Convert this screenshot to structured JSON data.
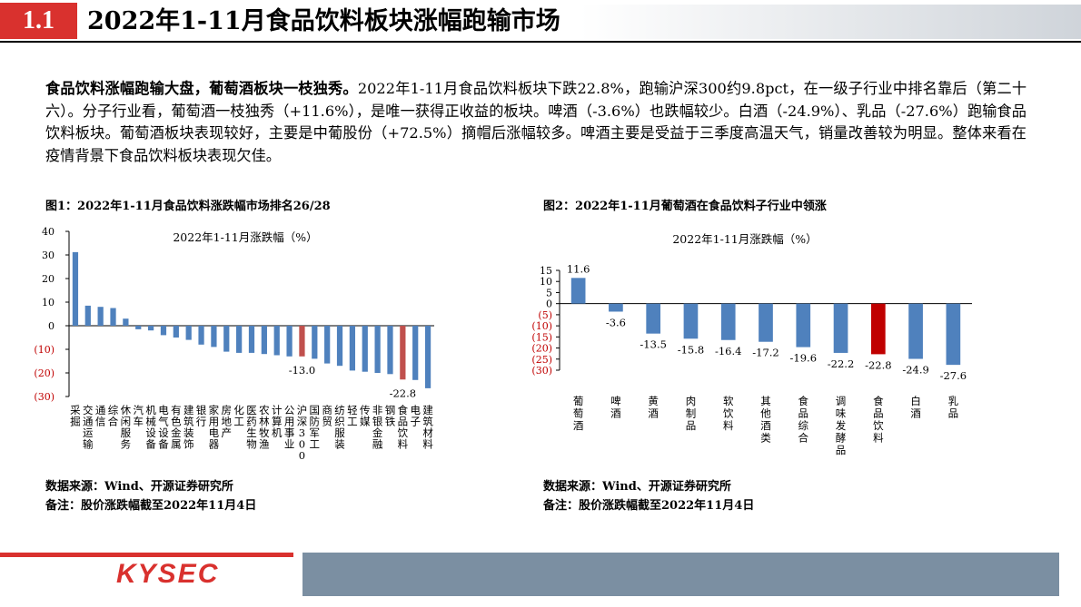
{
  "header": {
    "section_number": "1.1",
    "title": "2022年1-11月食品饮料板块涨幅跑输市场"
  },
  "summary": {
    "lead": "食品饮料涨幅跑输大盘，葡萄酒板块一枝独秀。",
    "body": "2022年1-11月食品饮料板块下跌22.8%，跑输沪深300约9.8pct，在一级子行业中排名靠后（第二十六）。分子行业看，葡萄酒一枝独秀（+11.6%），是唯一获得正收益的板块。啤酒（-3.6%）也跌幅较少。白酒（-24.9%）、乳品（-27.6%）跑输食品饮料板块。葡萄酒板块表现较好，主要是中葡股份（+72.5%）摘帽后涨幅较多。啤酒主要是受益于三季度高温天气，销量改善较为明显。整体来看在疫情背景下食品饮料板块表现欠佳。"
  },
  "figures": {
    "fig1_title": "图1：2022年1-11月食品饮料涨跌幅市场排名26/28",
    "fig2_title": "图2：2022年1-11月葡萄酒在食品饮料子行业中领涨",
    "source_label": "数据来源：Wind、开源证券研究所",
    "note_label": "备注：股价涨跌幅截至2022年11月4日"
  },
  "footer": {
    "logo_text": "KYSEC"
  },
  "colors": {
    "accent_red": "#d9312e",
    "bar_blue": "#4f81bd",
    "highlight_red": "#c0504d",
    "highlight_red2": "#c00000",
    "footer_grey": "#7b8fa2"
  },
  "chart_data": [
    {
      "type": "bar",
      "title": "2022年1-11月涨跌幅（%）",
      "ylim": [
        -30,
        40
      ],
      "yticks": [
        "40",
        "30",
        "20",
        "10",
        "0",
        "(10)",
        "(20)",
        "(30)"
      ],
      "ytick_values": [
        40,
        30,
        20,
        10,
        0,
        -10,
        -20,
        -30
      ],
      "categories": [
        "采掘",
        "交通运输",
        "通信",
        "综合",
        "休闲服务",
        "汽车",
        "机械设备",
        "电气设备",
        "有色金属",
        "建筑装饰",
        "银行",
        "家用电器",
        "房地产",
        "化工",
        "医药生物",
        "农林牧渔",
        "计算机",
        "公用事业",
        "沪深300",
        "国防军工",
        "商贸",
        "纺织服装",
        "轻工",
        "传媒",
        "非银金融",
        "钢铁",
        "食品饮料",
        "电子",
        "建筑材料"
      ],
      "values": [
        31.2,
        8.5,
        8.0,
        7.5,
        3.0,
        -1.5,
        -2.0,
        -4.0,
        -5.0,
        -6.0,
        -8.0,
        -9.0,
        -11.0,
        -11.5,
        -11.5,
        -12.0,
        -12.5,
        -13.0,
        -13.0,
        -14.0,
        -16.0,
        -17.0,
        -19.0,
        -19.5,
        -20.0,
        -20.5,
        -22.8,
        -23.0,
        -26.5
      ],
      "highlight_categories": [
        "沪深300",
        "食品饮料"
      ],
      "annotations": [
        {
          "category": "沪深300",
          "text": "-13.0"
        },
        {
          "category": "食品饮料",
          "text": "-22.8"
        }
      ],
      "grid": false
    },
    {
      "type": "bar",
      "title": "2022年1-11月涨跌幅（%）",
      "ylim": [
        -30,
        15
      ],
      "yticks": [
        "15",
        "10",
        "5",
        "0",
        "(5)",
        "(10)",
        "(15)",
        "(20)",
        "(25)",
        "(30)"
      ],
      "ytick_values": [
        15,
        10,
        5,
        0,
        -5,
        -10,
        -15,
        -20,
        -25,
        -30
      ],
      "categories": [
        "葡萄酒",
        "啤酒",
        "黄酒",
        "肉制品",
        "软饮料",
        "其他酒类",
        "食品综合",
        "调味发酵品",
        "食品饮料",
        "白酒",
        "乳品"
      ],
      "values": [
        11.6,
        -3.6,
        -13.5,
        -15.8,
        -16.4,
        -17.2,
        -19.6,
        -22.2,
        -22.8,
        -24.9,
        -27.6
      ],
      "data_labels": [
        "11.6",
        "-3.6",
        "-13.5",
        "-15.8",
        "-16.4",
        "-17.2",
        "-19.6",
        "-22.2",
        "-22.8",
        "-24.9",
        "-27.6"
      ],
      "highlight_categories": [
        "食品饮料"
      ],
      "grid": false
    }
  ]
}
